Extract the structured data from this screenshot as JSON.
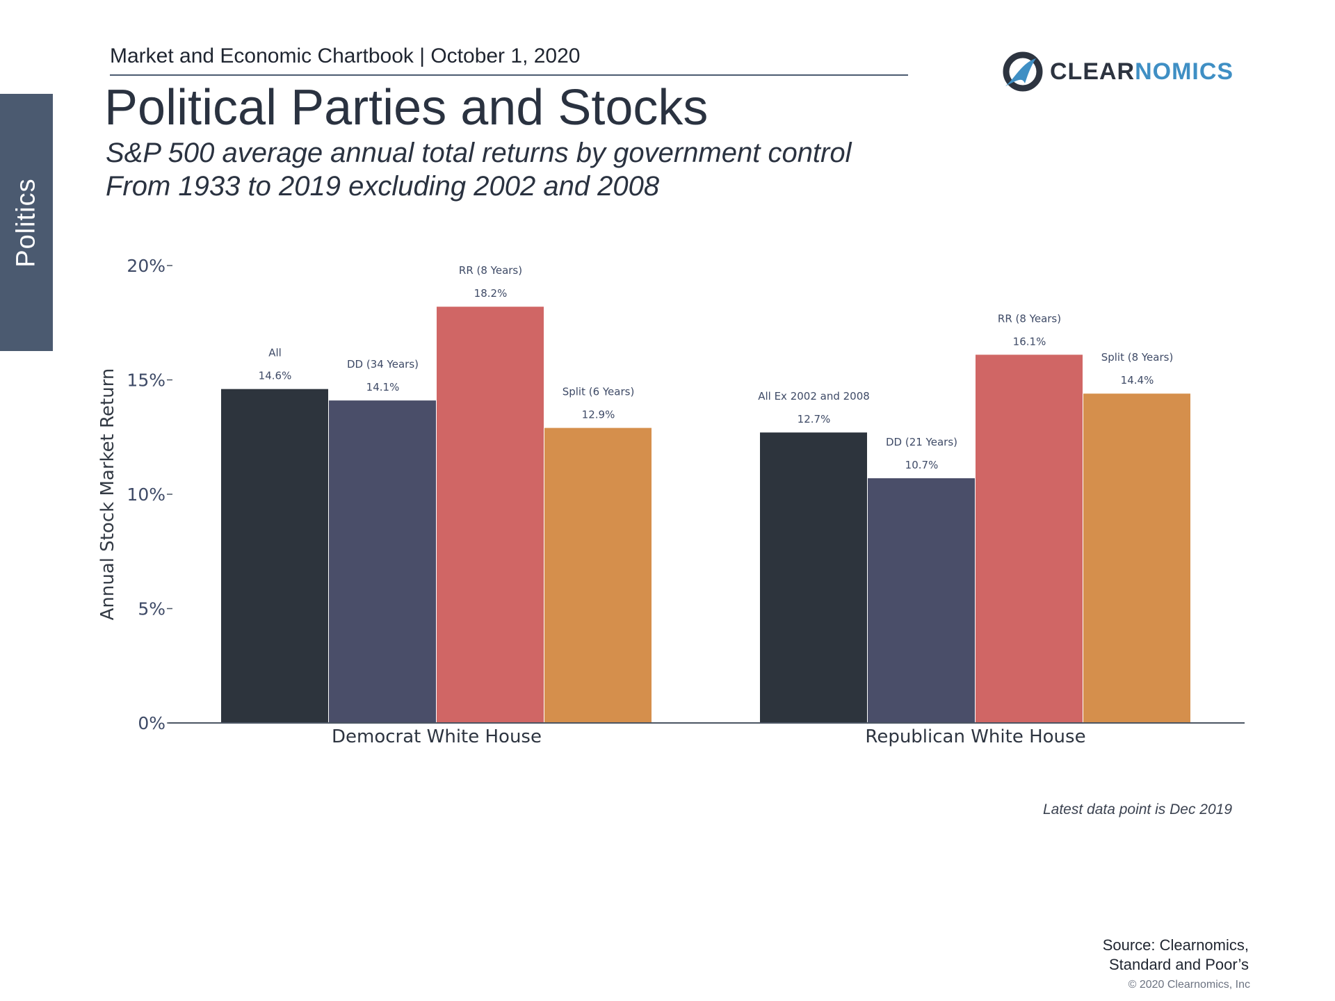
{
  "header": {
    "chartbook": "Market and Economic Chartbook | October 1, 2020",
    "title": "Political Parties and Stocks",
    "subtitle_line1": "S&P 500 average annual total returns by government control",
    "subtitle_line2": "From 1933 to 2019 excluding 2002 and 2008"
  },
  "side_tab": {
    "label": "Politics"
  },
  "logo": {
    "clear": "CLEAR",
    "nomics": "NOMICS",
    "icon": "clearnomics-logo-icon"
  },
  "chart_data": {
    "type": "bar",
    "ylabel": "Annual Stock Market Return",
    "ylim": [
      0,
      20
    ],
    "yticks": [
      {
        "value": 0,
        "label": "0%"
      },
      {
        "value": 5,
        "label": "5%"
      },
      {
        "value": 10,
        "label": "10%"
      },
      {
        "value": 15,
        "label": "15%"
      },
      {
        "value": 20,
        "label": "20%"
      }
    ],
    "groups": [
      {
        "label": "Democrat White House",
        "bars": [
          {
            "name": "All",
            "value": 14.6,
            "value_label": "14.6%",
            "color": "#2d343d"
          },
          {
            "name": "DD (34 Years)",
            "value": 14.1,
            "value_label": "14.1%",
            "color": "#4a4e69"
          },
          {
            "name": "RR (8 Years)",
            "value": 18.2,
            "value_label": "18.2%",
            "color": "#d06665"
          },
          {
            "name": "Split (6 Years)",
            "value": 12.9,
            "value_label": "12.9%",
            "color": "#d58f4c"
          }
        ]
      },
      {
        "label": "Republican White House",
        "bars": [
          {
            "name": "All Ex 2002 and 2008",
            "value": 12.7,
            "value_label": "12.7%",
            "color": "#2d343d"
          },
          {
            "name": "DD (21 Years)",
            "value": 10.7,
            "value_label": "10.7%",
            "color": "#4a4e69"
          },
          {
            "name": "RR (8 Years)",
            "value": 16.1,
            "value_label": "16.1%",
            "color": "#d06665"
          },
          {
            "name": "Split (8 Years)",
            "value": 14.4,
            "value_label": "14.4%",
            "color": "#d58f4c"
          }
        ]
      }
    ]
  },
  "footer": {
    "latest": "Latest data point is Dec 2019",
    "source_line1": "Source: Clearnomics,",
    "source_line2": "Standard and Poor’s",
    "copyright": "© 2020 Clearnomics, Inc"
  }
}
